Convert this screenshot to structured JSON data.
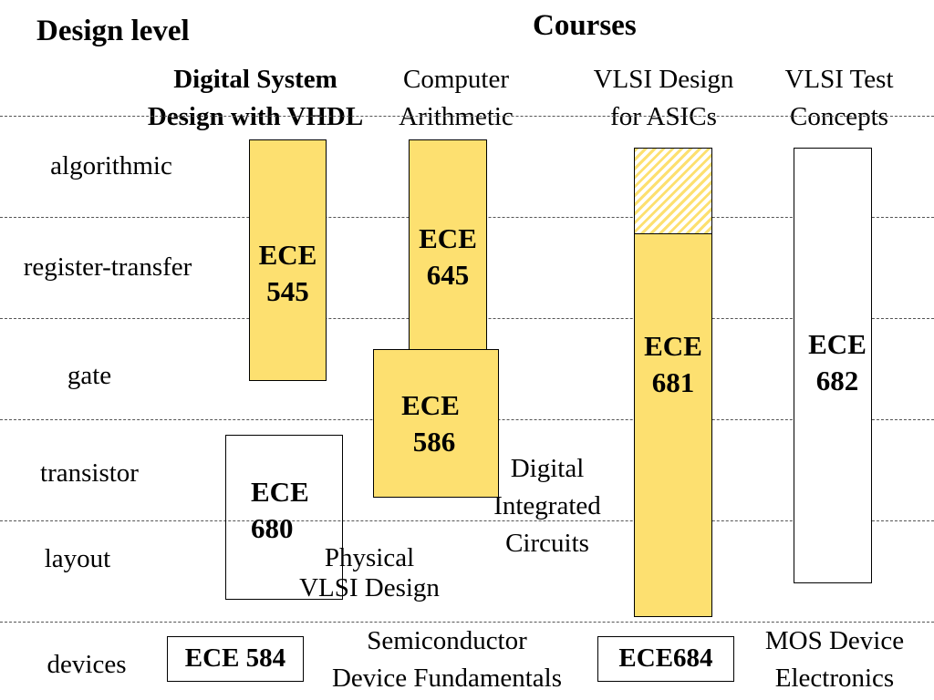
{
  "header": {
    "left_title": "Design level",
    "right_title": "Courses"
  },
  "course_titles": {
    "digital_system": [
      "Digital System",
      "Design with VHDL"
    ],
    "computer_arithmetic": [
      "Computer",
      "Arithmetic"
    ],
    "vlsi_design": [
      "VLSI Design",
      "for ASICs"
    ],
    "vlsi_test": [
      "VLSI Test",
      "Concepts"
    ]
  },
  "levels": [
    "algorithmic",
    "register-transfer",
    "gate",
    "transistor",
    "layout",
    "devices"
  ],
  "boxes": {
    "ece545": [
      "ECE",
      "545"
    ],
    "ece645": [
      "ECE",
      "645"
    ],
    "ece586": [
      "ECE",
      "586"
    ],
    "ece681": [
      "ECE",
      "681"
    ],
    "ece682": [
      "ECE",
      "682"
    ],
    "ece680": [
      "ECE",
      "680"
    ]
  },
  "floating_labels": {
    "digital_integrated_circuits": [
      "Digital",
      "Integrated",
      "Circuits"
    ],
    "physical_vlsi_design": [
      "Physical",
      "VLSI Design"
    ],
    "semiconductor_device_fundamentals": [
      "Semiconductor",
      "Device Fundamentals"
    ],
    "mos_device_electronics": [
      "MOS Device",
      "Electronics"
    ]
  },
  "device_boxes": {
    "ece584": "ECE 584",
    "ece684": "ECE684"
  },
  "colors": {
    "fill": "#fde070",
    "line": "#000000",
    "divider": "#555555"
  }
}
